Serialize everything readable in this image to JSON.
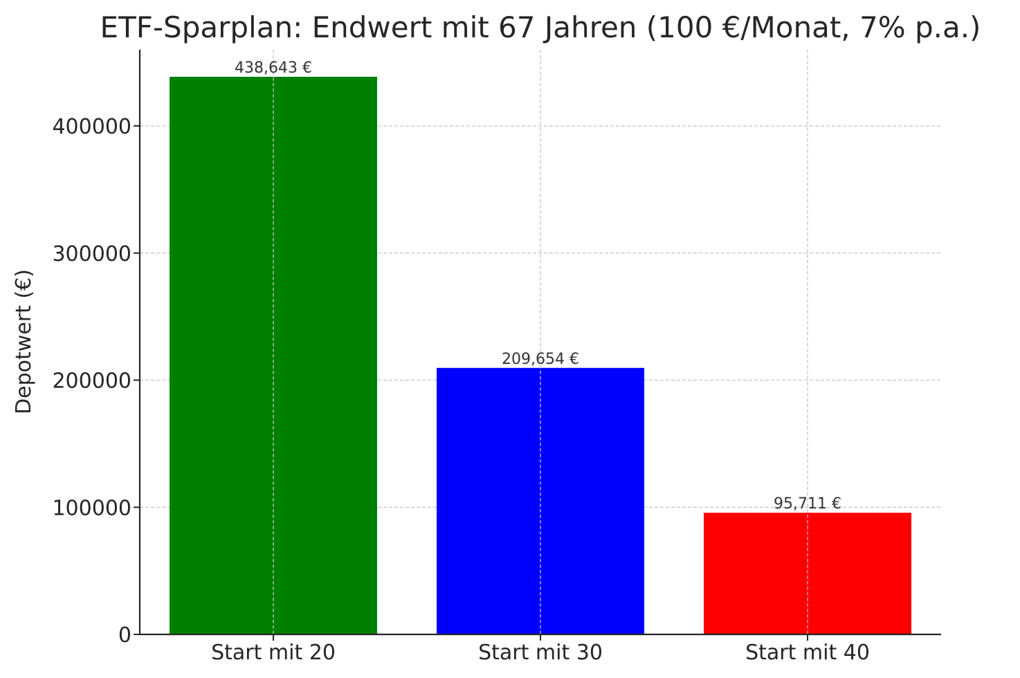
{
  "chart_data": {
    "type": "bar",
    "title": "ETF-Sparplan: Endwert mit 67 Jahren (100 €/Monat, 7% p.a.)",
    "xlabel": "",
    "ylabel": "Depotwert (€)",
    "categories": [
      "Start mit 20",
      "Start mit 30",
      "Start mit 40"
    ],
    "values": [
      438643,
      209654,
      95711
    ],
    "data_labels": [
      "438,643 €",
      "209,654 €",
      "95,711 €"
    ],
    "colors": [
      "#008000",
      "#0000ff",
      "#ff0000"
    ],
    "ylim": [
      0,
      460000
    ],
    "yticks": [
      0,
      100000,
      200000,
      300000,
      400000
    ],
    "ytick_labels": [
      "0",
      "100000",
      "200000",
      "300000",
      "400000"
    ],
    "grid": true,
    "grid_axes": "both",
    "legend": "none"
  }
}
